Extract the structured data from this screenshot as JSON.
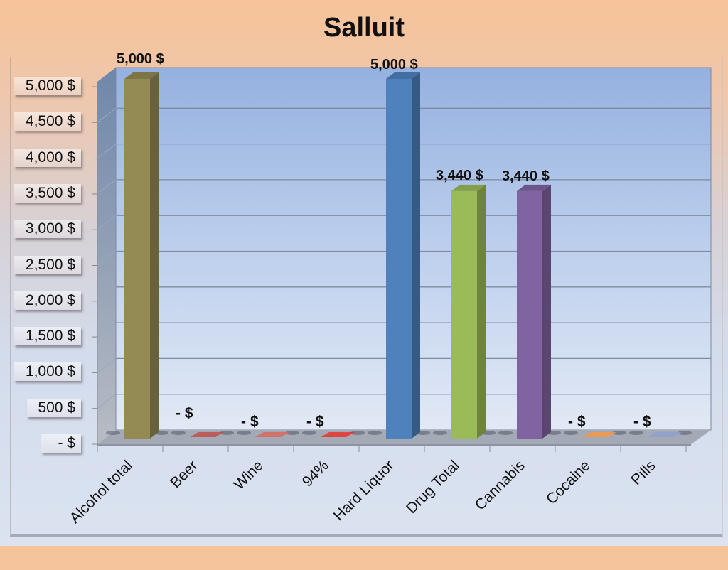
{
  "chart_data": {
    "type": "bar",
    "title": "Salluit",
    "xlabel": "",
    "ylabel": "",
    "ylim": [
      0,
      5000
    ],
    "grid": true,
    "legend": "none",
    "style": "3d-column",
    "categories": [
      "Alcohol total",
      "Beer",
      "Wine",
      "94%",
      "Hard Liquor",
      "Drug Total",
      "Cannabis",
      "Cocaine",
      "Pills"
    ],
    "values": [
      5000,
      0,
      0,
      0,
      5000,
      3440,
      3440,
      0,
      0
    ],
    "data_labels": [
      "5,000 $",
      "-   $",
      "-   $",
      "-   $",
      "5,000 $",
      "3,440 $",
      "3,440 $",
      "-   $",
      "-   $"
    ],
    "colors": [
      "#948a54",
      "#c0504d",
      "#d9695f",
      "#e8322e",
      "#4f81bd",
      "#9bbb59",
      "#8064a2",
      "#f79646",
      "#8ea0cc"
    ],
    "y_ticks": [
      "-   $",
      "500 $",
      "1,000 $",
      "1,500 $",
      "2,000 $",
      "2,500 $",
      "3,000 $",
      "3,500 $",
      "4,000 $",
      "4,500 $",
      "5,000 $"
    ]
  }
}
